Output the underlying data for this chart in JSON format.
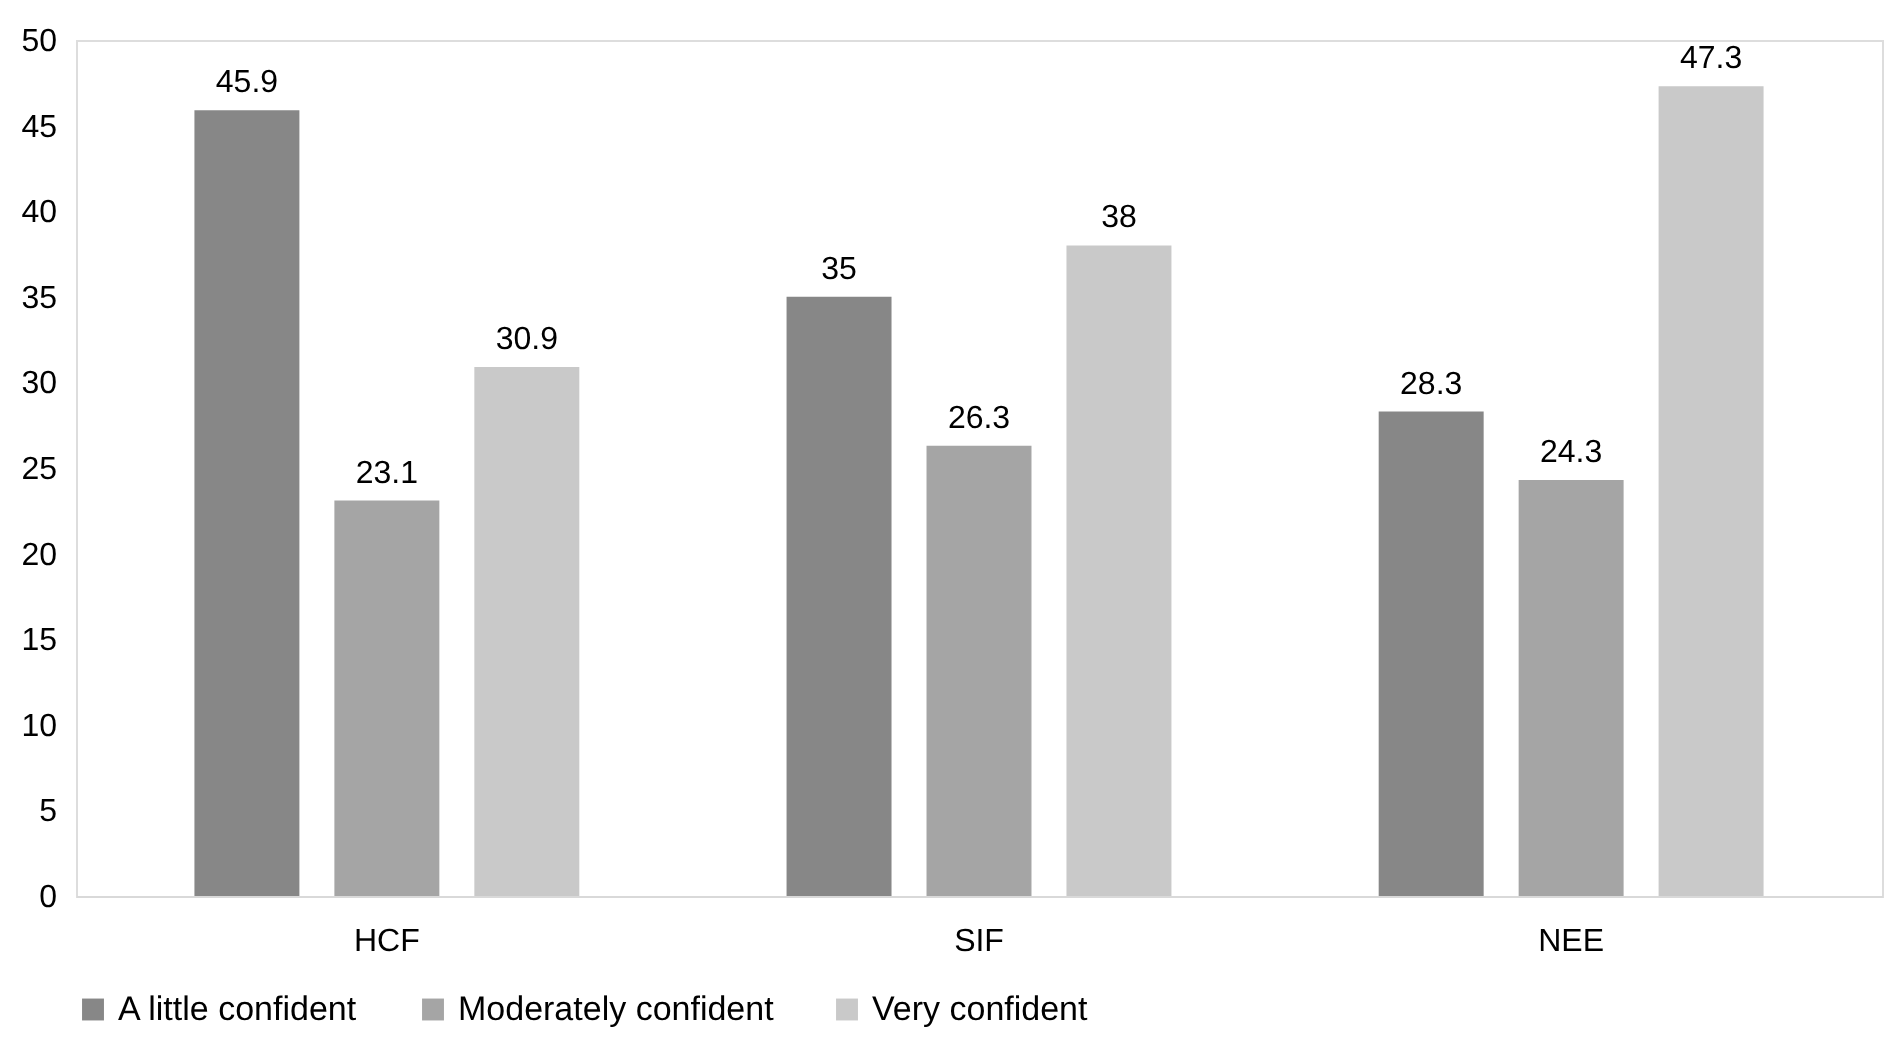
{
  "chart_data": {
    "type": "bar",
    "categories": [
      "HCF",
      "SIF",
      "NEE"
    ],
    "series": [
      {
        "name": "A little confident",
        "color": "#878787",
        "values": [
          45.9,
          35,
          28.3
        ]
      },
      {
        "name": "Moderately confident",
        "color": "#a5a5a5",
        "values": [
          23.1,
          26.3,
          24.3
        ]
      },
      {
        "name": "Very confident",
        "color": "#c9c9c9",
        "values": [
          30.9,
          38,
          47.3
        ]
      }
    ],
    "ylim": [
      0,
      50
    ],
    "yticks": [
      0,
      5,
      10,
      15,
      20,
      25,
      30,
      35,
      40,
      45,
      50
    ],
    "grid": false,
    "legend": "bottom",
    "data_labels": true
  }
}
